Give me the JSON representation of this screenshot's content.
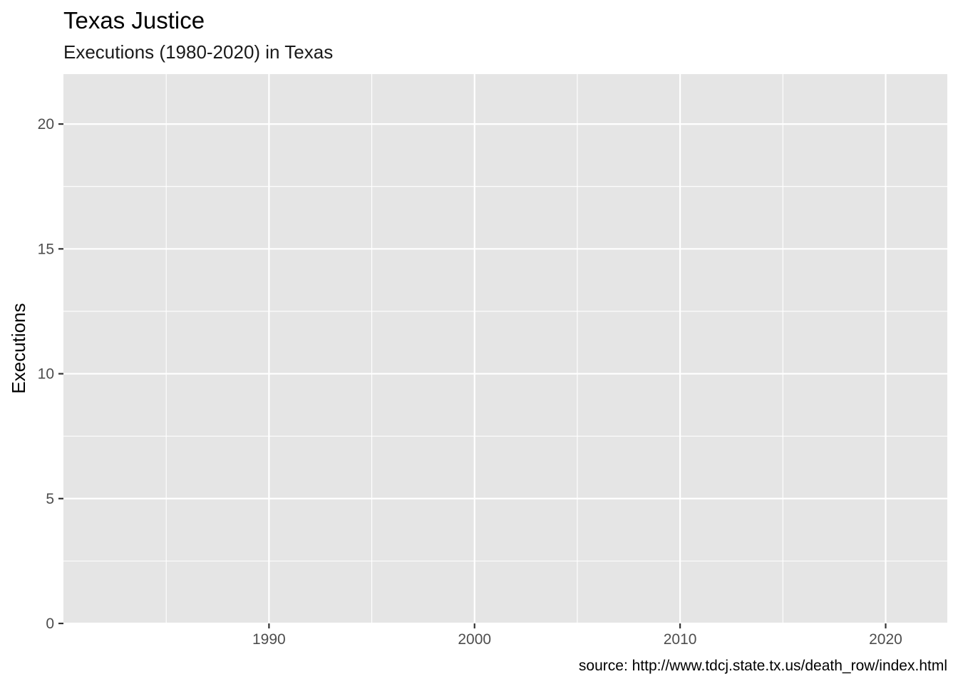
{
  "chart_data": {
    "type": "line",
    "title": "Texas Justice",
    "subtitle": "Executions (1980-2020) in Texas",
    "xlabel": "",
    "ylabel": "Executions",
    "caption": "source: http://www.tdcj.state.tx.us/death_row/index.html",
    "xlim": [
      1980,
      2023
    ],
    "ylim": [
      0,
      22
    ],
    "x_ticks": [
      1990,
      2000,
      2010,
      2020
    ],
    "x_minor_ticks": [
      1985,
      1995,
      2005,
      2015
    ],
    "y_ticks": [
      0,
      5,
      10,
      15,
      20
    ],
    "y_minor_ticks": [
      2.5,
      7.5,
      12.5,
      17.5
    ],
    "grid": true,
    "series": [],
    "colors": {
      "panel_background": "#e5e5e5",
      "grid_line": "#ffffff",
      "tick_mark": "#333333"
    }
  }
}
